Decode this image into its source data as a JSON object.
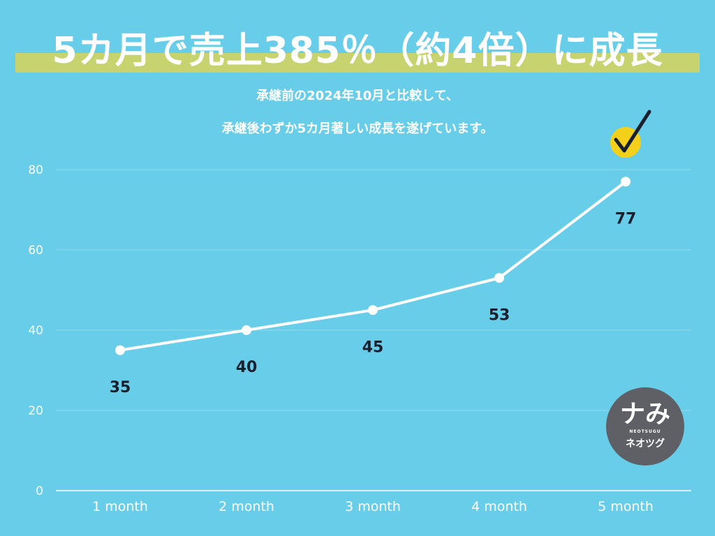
{
  "title": "5カ月で売上385％（約4倍）に成長",
  "subtitle_lines": [
    "承継前の2024年10月と比較して、",
    "承継後わずか5カ月著しい成長を遂げています。"
  ],
  "logo": {
    "mark": "ナみ",
    "small_text": "NEOTSUGU",
    "name": "ネオツグ"
  },
  "colors": {
    "background": "#68cde9",
    "title_band": "#c7d36f",
    "line": "#ffffff",
    "data_label": "#1a1f2e",
    "axis_text": "#ffffff",
    "check_circle": "#f3d11a",
    "logo_bg": "#5f5f66"
  },
  "chart_data": {
    "type": "line",
    "categories": [
      "1 month",
      "2 month",
      "3 month",
      "4 month",
      "5 month"
    ],
    "values": [
      35,
      40,
      45,
      53,
      77
    ],
    "data_labels": [
      "35",
      "40",
      "45",
      "53",
      "77"
    ],
    "yticks": [
      0,
      20,
      40,
      60,
      80
    ],
    "ylim": [
      0,
      80
    ],
    "grid": true,
    "title": "",
    "xlabel": "",
    "ylabel": ""
  }
}
